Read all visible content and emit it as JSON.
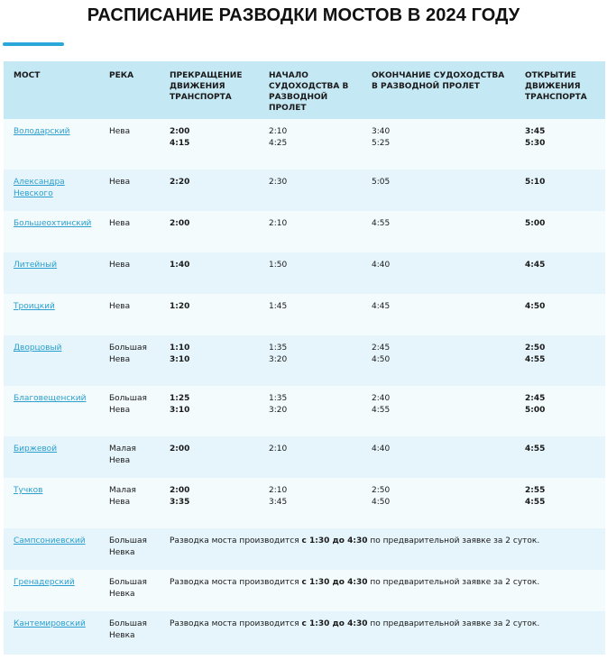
{
  "title": "РАСПИСАНИЕ РАЗВОДКИ МОСТОВ В 2024 ГОДУ",
  "accent_color": "#2aa7d8",
  "header_color": "#c5e8f5",
  "link_color": "#2a9fd0",
  "headers": [
    "МОСТ",
    "РЕКА",
    "ПРЕКРАЩЕНИЕ ДВИЖЕНИЯ ТРАНСПОРТА",
    "НАЧАЛО СУДОХОДСТВА В РАЗВОДНОЙ ПРОЛЕТ",
    "ОКОНЧАНИЕ СУДОХОДСТВА В РАЗВОДНОЙ ПРОЛЕТ",
    "ОТКРЫТИЕ ДВИЖЕНИЯ ТРАНСПОРТА"
  ],
  "rows": [
    {
      "bridge": "Володарский",
      "river": "Нева",
      "stop": [
        "2:00",
        "4:15"
      ],
      "nav_start": [
        "2:10",
        "4:25"
      ],
      "nav_end": [
        "3:40",
        "5:25"
      ],
      "open": [
        "3:45",
        "5:30"
      ]
    },
    {
      "bridge": "Александра Невского",
      "river": "Нева",
      "stop": [
        "2:20"
      ],
      "nav_start": [
        "2:30"
      ],
      "nav_end": [
        "5:05"
      ],
      "open": [
        "5:10"
      ]
    },
    {
      "bridge": "Большеохтинский",
      "river": "Нева",
      "stop": [
        "2:00"
      ],
      "nav_start": [
        "2:10"
      ],
      "nav_end": [
        "4:55"
      ],
      "open": [
        "5:00"
      ]
    },
    {
      "bridge": "Литейный",
      "river": "Нева",
      "stop": [
        "1:40"
      ],
      "nav_start": [
        "1:50"
      ],
      "nav_end": [
        "4:40"
      ],
      "open": [
        "4:45"
      ]
    },
    {
      "bridge": "Троицкий",
      "river": "Нева",
      "stop": [
        "1:20"
      ],
      "nav_start": [
        "1:45"
      ],
      "nav_end": [
        "4:45"
      ],
      "open": [
        "4:50"
      ]
    },
    {
      "bridge": "Дворцовый",
      "river": "Большая Нева",
      "stop": [
        "1:10",
        "3:10"
      ],
      "nav_start": [
        "1:35",
        "3:20"
      ],
      "nav_end": [
        "2:45",
        "4:50"
      ],
      "open": [
        "2:50",
        "4:55"
      ]
    },
    {
      "bridge": "Благовещенский",
      "river": "Большая Нева",
      "stop": [
        "1:25",
        "3:10"
      ],
      "nav_start": [
        "1:35",
        "3:20"
      ],
      "nav_end": [
        "2:40",
        "4:55"
      ],
      "open": [
        "2:45",
        "5:00"
      ]
    },
    {
      "bridge": "Биржевой",
      "river": "Малая Нева",
      "stop": [
        "2:00"
      ],
      "nav_start": [
        "2:10"
      ],
      "nav_end": [
        "4:40"
      ],
      "open": [
        "4:55"
      ]
    },
    {
      "bridge": "Тучков",
      "river": "Малая Нева",
      "stop": [
        "2:00",
        "3:35"
      ],
      "nav_start": [
        "2:10",
        "3:45"
      ],
      "nav_end": [
        "2:50",
        "4:50"
      ],
      "open": [
        "2:55",
        "4:55"
      ]
    }
  ],
  "request_rows": [
    {
      "bridge": "Сампсониевский",
      "river": "Большая Невка"
    },
    {
      "bridge": "Гренадерский",
      "river": "Большая Невка"
    },
    {
      "bridge": "Кантемировский",
      "river": "Большая Невка"
    }
  ],
  "request_note": {
    "before": "Разводка моста производится ",
    "time": "с 1:30 до 4:30",
    "after": " по предварительной заявке за 2 суток."
  }
}
